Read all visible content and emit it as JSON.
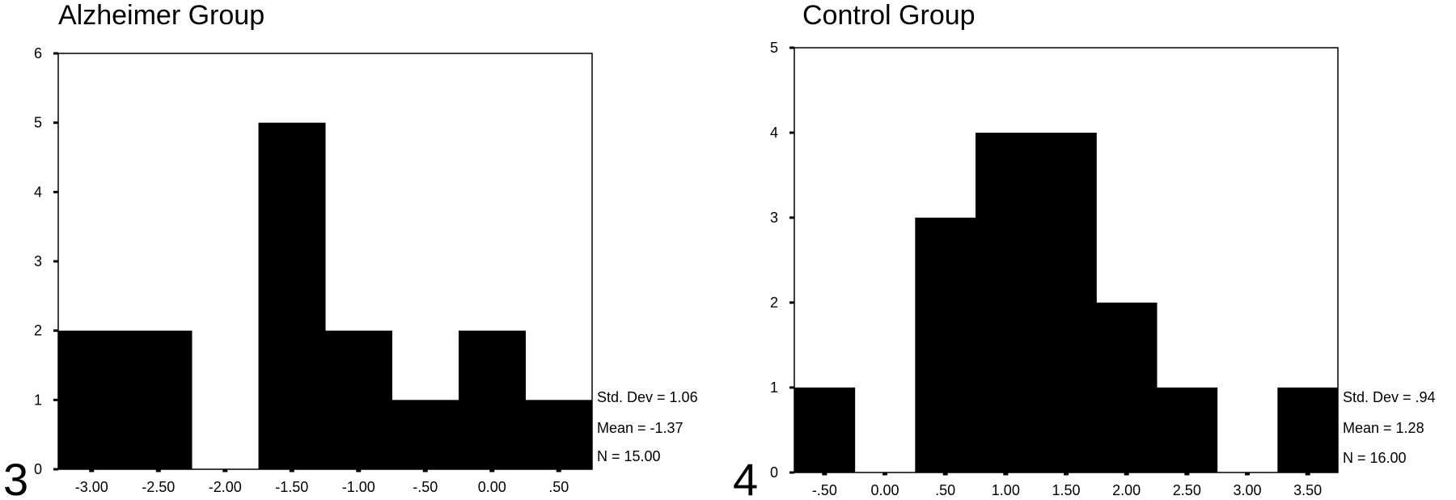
{
  "figure_numbers": [
    "3",
    "4"
  ],
  "chart_data": [
    {
      "type": "bar",
      "title": "Alzheimer  Group",
      "categories": [
        "-3.00",
        "-2.50",
        "-2.00",
        "-1.50",
        "-1.00",
        "-.50",
        "0.00",
        ".50"
      ],
      "values": [
        2,
        2,
        0,
        5,
        2,
        1,
        2,
        1
      ],
      "ylim": [
        0,
        6
      ],
      "yticks": [
        "0",
        "1",
        "2",
        "3",
        "4",
        "5",
        "6"
      ],
      "stats": [
        "Std. Dev = 1.06",
        "Mean = -1.37",
        "N = 15.00"
      ]
    },
    {
      "type": "bar",
      "title": "Control Group",
      "categories": [
        "-.50",
        "0.00",
        ".50",
        "1.00",
        "1.50",
        "2.00",
        "2.50",
        "3.00",
        "3.50"
      ],
      "values": [
        1,
        0,
        3,
        4,
        4,
        2,
        1,
        0,
        1
      ],
      "ylim": [
        0,
        5
      ],
      "yticks": [
        "0",
        "1",
        "2",
        "3",
        "4",
        "5"
      ],
      "stats": [
        "Std. Dev = .94",
        "Mean = 1.28",
        "N = 16.00"
      ]
    }
  ]
}
